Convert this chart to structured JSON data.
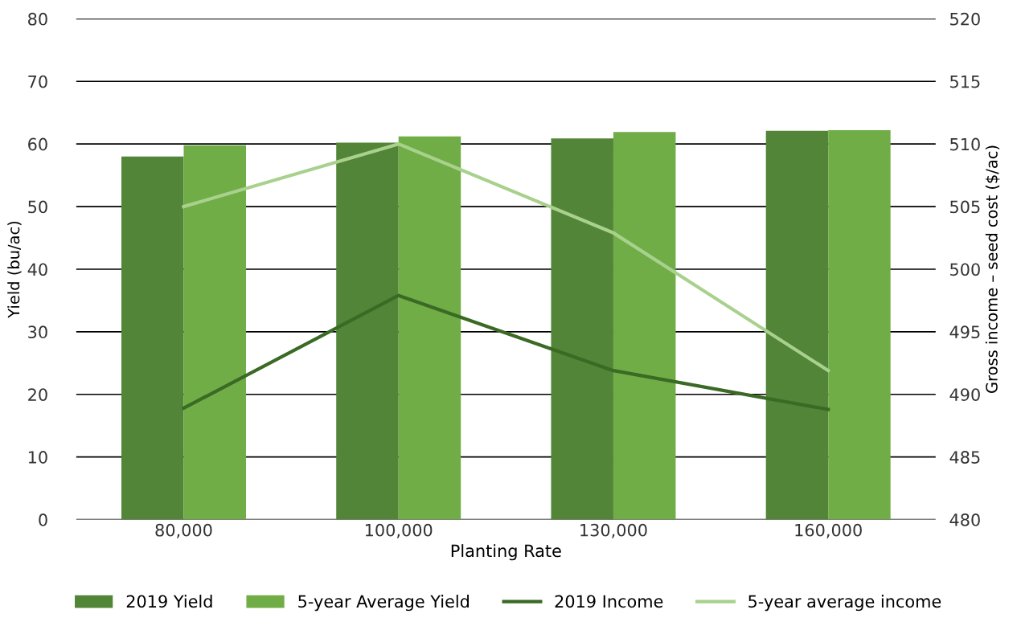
{
  "chart_data": {
    "type": "bar",
    "xlabel": "Planting Rate",
    "ylabel": "Yield (bu/ac)",
    "y2label": "Gross income – seed cost ($/ac)",
    "categories": [
      "80,000",
      "100,000",
      "130,000",
      "160,000"
    ],
    "series": [
      {
        "name": "2019 Yield",
        "color": "#538538",
        "values": [
          58.0,
          60.2,
          60.9,
          62.1
        ]
      },
      {
        "name": "5-year Average Yield",
        "color": "#70ad47",
        "values": [
          59.8,
          61.2,
          61.9,
          62.2
        ]
      },
      {
        "name": "2019 Income",
        "type": "line",
        "axis": "y2",
        "color": "#3a6a24",
        "values": [
          488.9,
          497.9,
          491.9,
          488.8
        ]
      },
      {
        "name": "5-year average income",
        "type": "line",
        "axis": "y2",
        "color": "#a9d18e",
        "values": [
          505.0,
          510.0,
          502.9,
          491.9
        ]
      }
    ],
    "ylim": [
      0,
      80
    ],
    "yticks": [
      0,
      10,
      20,
      30,
      40,
      50,
      60,
      70,
      80
    ],
    "y2lim": [
      480,
      520
    ],
    "y2ticks": [
      480,
      485,
      490,
      495,
      500,
      505,
      510,
      515,
      520
    ],
    "grid": "y",
    "legend": "bottom",
    "line_style": "solid",
    "marker": "none"
  }
}
